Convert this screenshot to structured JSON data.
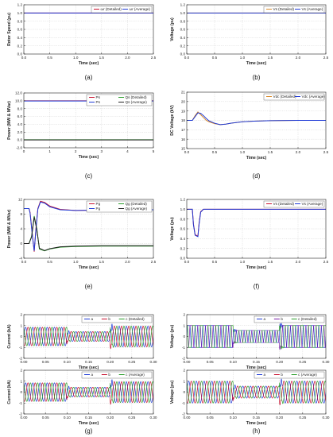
{
  "colors": {
    "red": "#c8102e",
    "blue": "#1f3bd6",
    "green": "#2a9d2a",
    "black": "#222222",
    "orange": "#d98b2b",
    "purple": "#7a1fa8",
    "grid": "#c8c8c8"
  },
  "chart_data": [
    {
      "id": "a",
      "type": "line",
      "caption": "(a)",
      "xlabel": "Time (sec)",
      "ylabel": "Rotor Speed (pu)",
      "xlim": [
        0,
        2.5
      ],
      "ylim": [
        0,
        1.2
      ],
      "xticks": [
        0.0,
        0.5,
        1.0,
        1.5,
        2.0,
        2.5
      ],
      "xtick_labels": [
        "0.0",
        "0.5",
        "1.0",
        "1.5",
        "2.0",
        "2.5"
      ],
      "yticks": [
        0,
        0.2,
        0.4,
        0.6,
        0.8,
        1.0,
        1.2
      ],
      "ytick_labels": [
        "0.0",
        "0.2",
        "0.4",
        "0.6",
        "0.8",
        "1.0",
        "1.2"
      ],
      "legend_position": "top-right",
      "series": [
        {
          "name": "ωr (Detailed)",
          "color": "red",
          "x": [
            0,
            2.5
          ],
          "y": [
            1.0,
            1.0
          ]
        },
        {
          "name": "ωr (Average)",
          "color": "blue",
          "x": [
            0,
            2.5
          ],
          "y": [
            1.0,
            1.0
          ]
        }
      ]
    },
    {
      "id": "b",
      "type": "line",
      "caption": "(b)",
      "xlabel": "Time (sec)",
      "ylabel": "Voltage (pu)",
      "xlim": [
        0,
        2.5
      ],
      "ylim": [
        0,
        1.2
      ],
      "xticks": [
        0.0,
        0.5,
        1.0,
        1.5,
        2.0,
        2.5
      ],
      "xtick_labels": [
        "0.0",
        "0.5",
        "1.0",
        "1.5",
        "2.0",
        "2.5"
      ],
      "yticks": [
        0,
        0.2,
        0.4,
        0.6,
        0.8,
        1.0,
        1.2
      ],
      "ytick_labels": [
        "0.0",
        "0.2",
        "0.4",
        "0.6",
        "0.8",
        "1.0",
        "1.2"
      ],
      "legend_position": "top-right",
      "series": [
        {
          "name": "Vs (Detailed)",
          "color": "orange",
          "x": [
            0,
            2.5
          ],
          "y": [
            1.0,
            1.0
          ]
        },
        {
          "name": "Vs (Average)",
          "color": "blue",
          "x": [
            0,
            2.5
          ],
          "y": [
            1.0,
            1.0
          ]
        }
      ]
    },
    {
      "id": "c",
      "type": "line",
      "caption": "(c)",
      "xlabel": "Time (sec)",
      "ylabel": "Power (MW & MVar)",
      "xlim": [
        0,
        5
      ],
      "ylim": [
        -2,
        12
      ],
      "xticks": [
        0,
        1,
        2,
        3,
        4,
        5
      ],
      "xtick_labels": [
        "0",
        "1",
        "2",
        "3",
        "4",
        "5"
      ],
      "yticks": [
        -2,
        0,
        2,
        4,
        6,
        8,
        10,
        12
      ],
      "ytick_labels": [
        "-2.0",
        "0.0",
        "2.0",
        "4.0",
        "6.0",
        "8.0",
        "10.0",
        "12.0"
      ],
      "legend_position": "top-right",
      "series": [
        {
          "name": "Ps",
          "color": "red",
          "x": [
            0,
            5
          ],
          "y": [
            10.0,
            10.0
          ]
        },
        {
          "name": "Qs (Detailed)",
          "color": "green",
          "x": [
            0,
            5
          ],
          "y": [
            0.05,
            0.05
          ]
        },
        {
          "name": "Ps",
          "color": "blue",
          "x": [
            0,
            5
          ],
          "y": [
            9.95,
            9.95
          ]
        },
        {
          "name": "Qs (Average)",
          "color": "black",
          "x": [
            0,
            5
          ],
          "y": [
            0.0,
            0.0
          ]
        }
      ]
    },
    {
      "id": "d",
      "type": "line",
      "caption": "(d)",
      "xlabel": "Time (sec)",
      "ylabel": "DC Voltage (kV)",
      "xlim": [
        0,
        2.5
      ],
      "ylim": [
        15,
        21
      ],
      "xticks": [
        0.0,
        0.5,
        1.0,
        1.5,
        2.0,
        2.5
      ],
      "xtick_labels": [
        "0.0",
        "0.5",
        "1.0",
        "1.5",
        "2.0",
        "2.5"
      ],
      "yticks": [
        15,
        16,
        17,
        18,
        19,
        20,
        21
      ],
      "ytick_labels": [
        "15",
        "16",
        "17",
        "18",
        "19",
        "20",
        "21"
      ],
      "legend_position": "top-right",
      "series": [
        {
          "name": "Vdc (Detailed)",
          "color": "orange",
          "x": [
            0,
            0.1,
            0.15,
            0.2,
            0.25,
            0.3,
            0.35,
            0.4,
            0.5,
            0.6,
            0.7,
            0.8,
            1.0,
            1.2,
            1.5,
            2.0,
            2.5
          ],
          "y": [
            18.0,
            18.0,
            18.5,
            18.9,
            18.6,
            18.3,
            18.0,
            17.85,
            17.65,
            17.55,
            17.6,
            17.7,
            17.85,
            17.92,
            17.97,
            18.0,
            18.0
          ]
        },
        {
          "name": "Vdc (Average)",
          "color": "blue",
          "x": [
            0,
            0.1,
            0.15,
            0.2,
            0.25,
            0.3,
            0.35,
            0.4,
            0.5,
            0.6,
            0.7,
            0.8,
            1.0,
            1.2,
            1.5,
            2.0,
            2.5
          ],
          "y": [
            18.0,
            18.0,
            18.4,
            18.8,
            18.75,
            18.5,
            18.2,
            17.95,
            17.7,
            17.55,
            17.6,
            17.7,
            17.85,
            17.92,
            17.97,
            18.0,
            18.0
          ]
        }
      ]
    },
    {
      "id": "e",
      "type": "line",
      "caption": "(e)",
      "xlabel": "Time (sec)",
      "ylabel": "Power (MW & MVar)",
      "xlim": [
        0,
        2.5
      ],
      "ylim": [
        -4,
        12
      ],
      "xticks": [
        0.0,
        0.5,
        1.0,
        1.5,
        2.0,
        2.5
      ],
      "xtick_labels": [
        "0.0",
        "0.5",
        "1.0",
        "1.5",
        "2.0",
        "2.5"
      ],
      "yticks": [
        -4,
        0,
        4,
        8,
        12
      ],
      "ytick_labels": [
        "-4",
        "0",
        "4",
        "8",
        "12"
      ],
      "legend_position": "top-right",
      "series": [
        {
          "name": "Pg",
          "color": "red",
          "x": [
            0,
            0.1,
            0.12,
            0.16,
            0.2,
            0.23,
            0.27,
            0.32,
            0.4,
            0.5,
            0.7,
            1.0,
            1.5,
            2.0,
            2.5
          ],
          "y": [
            9.5,
            9.5,
            8.5,
            3.0,
            -2.2,
            3.5,
            9.5,
            11.5,
            11.2,
            10.2,
            9.3,
            9.0,
            9.1,
            9.2,
            9.2
          ]
        },
        {
          "name": "Qg (Detailed)",
          "color": "green",
          "x": [
            0,
            0.1,
            0.15,
            0.2,
            0.25,
            0.3,
            0.4,
            0.5,
            0.7,
            1.0,
            1.5,
            2.0,
            2.5
          ],
          "y": [
            0,
            0,
            2.0,
            7.5,
            4.0,
            -1.5,
            -2.0,
            -1.5,
            -1.0,
            -0.8,
            -0.7,
            -0.7,
            -0.7
          ]
        },
        {
          "name": "Pg",
          "color": "blue",
          "x": [
            0,
            0.1,
            0.12,
            0.16,
            0.2,
            0.23,
            0.27,
            0.32,
            0.4,
            0.5,
            0.7,
            1.0,
            1.5,
            2.0,
            2.5
          ],
          "y": [
            9.5,
            9.5,
            8.3,
            2.8,
            -2.0,
            3.2,
            9.3,
            11.3,
            11.0,
            10.0,
            9.2,
            9.0,
            9.1,
            9.2,
            9.2
          ]
        },
        {
          "name": "Qg (Average)",
          "color": "black",
          "x": [
            0,
            0.1,
            0.15,
            0.2,
            0.25,
            0.3,
            0.4,
            0.5,
            0.7,
            1.0,
            1.5,
            2.0,
            2.5
          ],
          "y": [
            0,
            0,
            1.8,
            7.2,
            3.8,
            -1.3,
            -1.9,
            -1.4,
            -0.9,
            -0.7,
            -0.6,
            -0.6,
            -0.6
          ]
        }
      ]
    },
    {
      "id": "f",
      "type": "line",
      "caption": "(f)",
      "xlabel": "Time (sec)",
      "ylabel": "Voltage (pu)",
      "xlim": [
        0,
        2.5
      ],
      "ylim": [
        0,
        1.2
      ],
      "xticks": [
        0.0,
        0.5,
        1.0,
        1.5,
        2.0,
        2.5
      ],
      "xtick_labels": [
        "0.0",
        "0.5",
        "1.0",
        "1.5",
        "2.0",
        "2.5"
      ],
      "yticks": [
        0,
        0.2,
        0.4,
        0.6,
        0.8,
        1.0,
        1.2
      ],
      "ytick_labels": [
        "0.0",
        "0.2",
        "0.4",
        "0.6",
        "0.8",
        "1.0",
        "1.2"
      ],
      "legend_position": "top-right",
      "series": [
        {
          "name": "Vs (Detailed)",
          "color": "red",
          "x": [
            0,
            0.1,
            0.12,
            0.15,
            0.2,
            0.22,
            0.25,
            0.3,
            0.4,
            2.5
          ],
          "y": [
            1.0,
            1.0,
            0.7,
            0.48,
            0.45,
            0.7,
            0.95,
            1.0,
            1.0,
            1.0
          ]
        },
        {
          "name": "Vs (Average)",
          "color": "blue",
          "x": [
            0,
            0.1,
            0.12,
            0.15,
            0.2,
            0.22,
            0.25,
            0.3,
            0.4,
            2.5
          ],
          "y": [
            1.0,
            1.0,
            0.68,
            0.47,
            0.44,
            0.68,
            0.94,
            1.0,
            1.0,
            1.0
          ]
        }
      ]
    },
    {
      "id": "g1",
      "type": "line",
      "caption": "",
      "xlabel": "Time (sec)",
      "ylabel": "Current (kA)",
      "xlim": [
        0,
        0.3
      ],
      "ylim": [
        -2,
        2
      ],
      "xticks": [
        0,
        0.05,
        0.1,
        0.15,
        0.2,
        0.25,
        0.3
      ],
      "xtick_labels": [
        "0.00",
        "0.05",
        "0.10",
        "0.15",
        "0.20",
        "0.25",
        "0.30"
      ],
      "yticks": [
        -2,
        -1,
        0,
        1,
        2
      ],
      "ytick_labels": [
        "-2",
        "-1",
        "0",
        "1",
        "2"
      ],
      "legend_position": "top-right",
      "waveform": {
        "kind": "three-phase",
        "freq_hz": 60,
        "segments": [
          {
            "t0": 0,
            "t1": 0.1,
            "amp": 0.85
          },
          {
            "t0": 0.1,
            "t1": 0.2,
            "amp": 0.45
          },
          {
            "t0": 0.2,
            "t1": 0.3,
            "amp": 0.95
          }
        ]
      },
      "series": [
        {
          "name": "a",
          "color": "blue"
        },
        {
          "name": "b",
          "color": "red"
        },
        {
          "name": "c (Detailed)",
          "color": "green"
        }
      ]
    },
    {
      "id": "h1",
      "type": "line",
      "caption": "",
      "xlabel": "Time (sec)",
      "ylabel": "Voltage (pu)",
      "xlim": [
        0,
        0.3
      ],
      "ylim": [
        -2,
        2
      ],
      "xticks": [
        0,
        0.05,
        0.1,
        0.15,
        0.2,
        0.25,
        0.3
      ],
      "xtick_labels": [
        "0.00",
        "0.05",
        "0.10",
        "0.15",
        "0.20",
        "0.25",
        "0.30"
      ],
      "yticks": [
        -2,
        -1,
        0,
        1,
        2
      ],
      "ytick_labels": [
        "-2",
        "-1",
        "0",
        "1",
        "2"
      ],
      "legend_position": "top-right",
      "waveform": {
        "kind": "three-phase-pwm",
        "freq_hz": 60,
        "segments": [
          {
            "t0": 0,
            "t1": 0.1,
            "amp": 1.0
          },
          {
            "t0": 0.1,
            "t1": 0.2,
            "amp": 0.55
          },
          {
            "t0": 0.2,
            "t1": 0.3,
            "amp": 1.0
          }
        ]
      },
      "series": [
        {
          "name": "a",
          "color": "blue"
        },
        {
          "name": "b",
          "color": "purple"
        },
        {
          "name": "c (Detailed)",
          "color": "green"
        }
      ]
    },
    {
      "id": "g2",
      "type": "line",
      "caption": "(g)",
      "xlabel": "Time (sec)",
      "ylabel": "Current (kA)",
      "xlim": [
        0,
        0.3
      ],
      "ylim": [
        -2,
        2
      ],
      "xticks": [
        0,
        0.05,
        0.1,
        0.15,
        0.2,
        0.25,
        0.3
      ],
      "xtick_labels": [
        "0.00",
        "0.05",
        "0.10",
        "0.15",
        "0.20",
        "0.25",
        "0.30"
      ],
      "yticks": [
        -2,
        -1,
        0,
        1,
        2
      ],
      "ytick_labels": [
        "-2",
        "-1",
        "0",
        "1",
        "2"
      ],
      "legend_position": "top-right",
      "waveform": {
        "kind": "three-phase",
        "freq_hz": 60,
        "segments": [
          {
            "t0": 0,
            "t1": 0.1,
            "amp": 0.85
          },
          {
            "t0": 0.1,
            "t1": 0.2,
            "amp": 0.45
          },
          {
            "t0": 0.2,
            "t1": 0.3,
            "amp": 0.95
          }
        ]
      },
      "series": [
        {
          "name": "a",
          "color": "blue"
        },
        {
          "name": "b",
          "color": "red"
        },
        {
          "name": "c (Average)",
          "color": "green"
        }
      ]
    },
    {
      "id": "h2",
      "type": "line",
      "caption": "(h)",
      "xlabel": "Time (sec)",
      "ylabel": "Voltage (pu)",
      "xlim": [
        0,
        0.3
      ],
      "ylim": [
        -2,
        2
      ],
      "xticks": [
        0,
        0.05,
        0.1,
        0.15,
        0.2,
        0.25,
        0.3
      ],
      "xtick_labels": [
        "0.00",
        "0.05",
        "0.10",
        "0.15",
        "0.20",
        "0.25",
        "0.30"
      ],
      "yticks": [
        -2,
        -1,
        0,
        1,
        2
      ],
      "ytick_labels": [
        "-2",
        "-1",
        "0",
        "1",
        "2"
      ],
      "legend_position": "top-right",
      "waveform": {
        "kind": "three-phase",
        "freq_hz": 60,
        "segments": [
          {
            "t0": 0,
            "t1": 0.1,
            "amp": 1.0
          },
          {
            "t0": 0.1,
            "t1": 0.2,
            "amp": 0.55
          },
          {
            "t0": 0.2,
            "t1": 0.3,
            "amp": 1.0
          }
        ]
      },
      "series": [
        {
          "name": "a",
          "color": "blue"
        },
        {
          "name": "b",
          "color": "red"
        },
        {
          "name": "c (Average)",
          "color": "green"
        }
      ]
    }
  ]
}
